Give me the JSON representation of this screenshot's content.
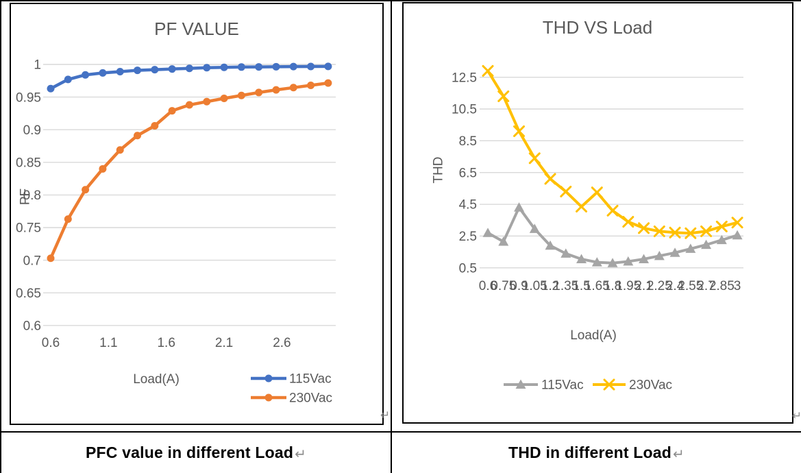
{
  "document": {
    "cell_mark": "↵",
    "captions": {
      "left": "PFC value in different Load",
      "right": "THD in different Load"
    }
  },
  "colors": {
    "blue": "#4472C4",
    "orange": "#ED7D31",
    "gray": "#A5A5A5",
    "yellow": "#FFC000",
    "grid": "#D9D9D9",
    "chart_text": "#595959"
  },
  "chart_data": [
    {
      "type": "line",
      "title": "PF VALUE",
      "xlabel": "Load(A)",
      "ylabel": "PF",
      "ylim": [
        0.6,
        1.0
      ],
      "xlim": [
        0.6,
        3.0
      ],
      "grid": true,
      "legend_position": "bottom-right-stacked",
      "x": [
        0.6,
        0.75,
        0.9,
        1.05,
        1.2,
        1.35,
        1.5,
        1.65,
        1.8,
        1.95,
        2.1,
        2.25,
        2.4,
        2.55,
        2.7,
        2.85,
        3
      ],
      "series": [
        {
          "name": "115Vac",
          "color": "#4472C4",
          "marker": "circle",
          "values": [
            0.963,
            0.977,
            0.984,
            0.987,
            0.989,
            0.991,
            0.992,
            0.993,
            0.994,
            0.995,
            0.9955,
            0.996,
            0.9962,
            0.9965,
            0.9967,
            0.9968,
            0.997
          ]
        },
        {
          "name": "230Vac",
          "color": "#ED7D31",
          "marker": "circle",
          "values": [
            0.703,
            0.763,
            0.808,
            0.84,
            0.869,
            0.891,
            0.906,
            0.929,
            0.938,
            0.943,
            0.948,
            0.9525,
            0.957,
            0.961,
            0.9645,
            0.968,
            0.9715
          ]
        }
      ],
      "yticks": [
        {
          "label": "1",
          "v": 1.0
        },
        {
          "label": "0.95",
          "v": 0.95
        },
        {
          "label": "0.9",
          "v": 0.9
        },
        {
          "label": "0.85",
          "v": 0.85
        },
        {
          "label": "0.8",
          "v": 0.8
        },
        {
          "label": "0.75",
          "v": 0.75
        },
        {
          "label": "0.7",
          "v": 0.7
        },
        {
          "label": "0.65",
          "v": 0.65
        },
        {
          "label": "0.6",
          "v": 0.6
        }
      ],
      "xticks": [
        {
          "label": "0.6",
          "v": 0.6
        },
        {
          "label": "1.1",
          "v": 1.1
        },
        {
          "label": "1.6",
          "v": 1.6
        },
        {
          "label": "2.1",
          "v": 2.1
        },
        {
          "label": "2.6",
          "v": 2.6
        }
      ]
    },
    {
      "type": "line",
      "title": "THD VS Load",
      "xlabel": "Load(A)",
      "ylabel": "THD",
      "ylim": [
        0.5,
        13.5
      ],
      "xlim": [
        0.6,
        3.0
      ],
      "grid": true,
      "legend_position": "bottom-horizontal",
      "x": [
        0.6,
        0.75,
        0.9,
        1.05,
        1.2,
        1.35,
        1.5,
        1.65,
        1.8,
        1.95,
        2.1,
        2.25,
        2.4,
        2.55,
        2.7,
        2.85,
        3
      ],
      "series": [
        {
          "name": "115Vac",
          "color": "#A5A5A5",
          "marker": "triangle",
          "values": [
            2.7,
            2.15,
            4.3,
            2.95,
            1.9,
            1.4,
            1.05,
            0.85,
            0.8,
            0.9,
            1.05,
            1.25,
            1.45,
            1.7,
            1.95,
            2.25,
            2.55
          ]
        },
        {
          "name": "230Vac",
          "color": "#FFC000",
          "marker": "xmark",
          "values": [
            12.9,
            11.3,
            9.1,
            7.4,
            6.1,
            5.3,
            4.35,
            5.25,
            4.1,
            3.4,
            3.0,
            2.8,
            2.72,
            2.68,
            2.8,
            3.1,
            3.35
          ]
        }
      ],
      "yticks": [
        {
          "label": "12.5",
          "v": 12.5
        },
        {
          "label": "10.5",
          "v": 10.5
        },
        {
          "label": "8.5",
          "v": 8.5
        },
        {
          "label": "6.5",
          "v": 6.5
        },
        {
          "label": "4.5",
          "v": 4.5
        },
        {
          "label": "2.5",
          "v": 2.5
        },
        {
          "label": "0.5",
          "v": 0.5
        }
      ],
      "xticks": [
        {
          "label": "0.6",
          "v": 0.6
        },
        {
          "label": "0.75",
          "v": 0.75
        },
        {
          "label": "0.9",
          "v": 0.9
        },
        {
          "label": "1.05",
          "v": 1.05
        },
        {
          "label": "1.2",
          "v": 1.2
        },
        {
          "label": "1.35",
          "v": 1.35
        },
        {
          "label": "1.5",
          "v": 1.5
        },
        {
          "label": "1.65",
          "v": 1.65
        },
        {
          "label": "1.8",
          "v": 1.8
        },
        {
          "label": "1.95",
          "v": 1.95
        },
        {
          "label": "2.1",
          "v": 2.1
        },
        {
          "label": "2.25",
          "v": 2.25
        },
        {
          "label": "2.4",
          "v": 2.4
        },
        {
          "label": "2.55",
          "v": 2.55
        },
        {
          "label": "2.7",
          "v": 2.7
        },
        {
          "label": "2.85",
          "v": 2.85
        },
        {
          "label": "3",
          "v": 3.0
        }
      ]
    }
  ]
}
